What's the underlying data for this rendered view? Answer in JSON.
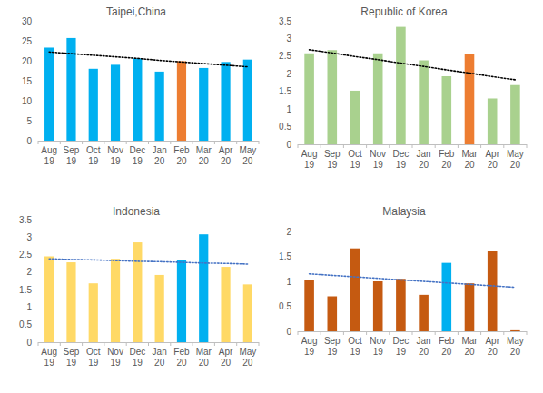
{
  "chart_data": [
    {
      "type": "bar",
      "title": "Taipei,China",
      "categories": [
        "Aug 19",
        "Sep 19",
        "Oct 19",
        "Nov 19",
        "Dec 19",
        "Jan 20",
        "Feb 20",
        "Mar 20",
        "Apr 20",
        "May 20"
      ],
      "series": [
        {
          "values": [
            23.3,
            25.7,
            18.0,
            19.0,
            20.6,
            17.3,
            19.9,
            18.2,
            19.7,
            20.3
          ],
          "colors": [
            "#00b0f0",
            "#00b0f0",
            "#00b0f0",
            "#00b0f0",
            "#00b0f0",
            "#00b0f0",
            "#ed7d31",
            "#00b0f0",
            "#00b0f0",
            "#00b0f0"
          ]
        },
        {
          "type": "line",
          "line_style": "dotted",
          "color": "#000000",
          "values": [
            22.2,
            21.8,
            21.4,
            21.0,
            20.6,
            20.1,
            19.7,
            19.3,
            18.9,
            18.5
          ]
        }
      ],
      "ylim": [
        0,
        30
      ],
      "yticks": [
        0,
        5,
        10,
        15,
        20,
        25,
        30
      ],
      "grid": false
    },
    {
      "type": "bar",
      "title": "Republic of Korea",
      "categories": [
        "Aug 19",
        "Sep 19",
        "Oct 19",
        "Nov 19",
        "Dec 19",
        "Jan 20",
        "Feb 20",
        "Mar 20",
        "Apr 20",
        "May 20"
      ],
      "series": [
        {
          "values": [
            2.58,
            2.67,
            1.52,
            2.58,
            3.33,
            2.38,
            1.93,
            2.55,
            1.3,
            1.68
          ],
          "colors": [
            "#a9d18e",
            "#a9d18e",
            "#a9d18e",
            "#a9d18e",
            "#a9d18e",
            "#a9d18e",
            "#a9d18e",
            "#ed7d31",
            "#a9d18e",
            "#a9d18e"
          ]
        },
        {
          "type": "line",
          "line_style": "dotted",
          "color": "#000000",
          "values": [
            2.68,
            2.59,
            2.49,
            2.4,
            2.3,
            2.21,
            2.11,
            2.02,
            1.92,
            1.83
          ]
        }
      ],
      "ylim": [
        0,
        3.5
      ],
      "yticks": [
        0,
        0.5,
        1,
        1.5,
        2,
        2.5,
        3,
        3.5
      ],
      "grid": false
    },
    {
      "type": "bar",
      "title": "Indonesia",
      "categories": [
        "Aug 19",
        "Sep 19",
        "Oct 19",
        "Nov 19",
        "Dec 19",
        "Jan 20",
        "Feb 20",
        "Mar 20",
        "Apr 20",
        "May 20"
      ],
      "series": [
        {
          "values": [
            2.45,
            2.28,
            1.68,
            2.38,
            2.85,
            1.92,
            2.35,
            3.08,
            2.15,
            1.65
          ],
          "colors": [
            "#ffd966",
            "#ffd966",
            "#ffd966",
            "#ffd966",
            "#ffd966",
            "#ffd966",
            "#00b0f0",
            "#00b0f0",
            "#ffd966",
            "#ffd966"
          ]
        },
        {
          "type": "line",
          "line_style": "dotted",
          "color": "#4472c4",
          "values": [
            2.38,
            2.36,
            2.35,
            2.33,
            2.31,
            2.3,
            2.28,
            2.26,
            2.25,
            2.23
          ]
        }
      ],
      "ylim": [
        0,
        3.5
      ],
      "yticks": [
        0,
        0.5,
        1,
        1.5,
        2,
        2.5,
        3,
        3.5
      ],
      "grid": false
    },
    {
      "type": "bar",
      "title": "Malaysia",
      "categories": [
        "Aug 19",
        "Sep 19",
        "Oct 19",
        "Nov 19",
        "Dec 19",
        "Jan 20",
        "Feb 20",
        "Mar 20",
        "Apr 20",
        "May 20"
      ],
      "series": [
        {
          "values": [
            1.02,
            0.7,
            1.66,
            1.0,
            1.05,
            0.73,
            1.37,
            0.96,
            1.6,
            0.02
          ],
          "colors": [
            "#c55a11",
            "#c55a11",
            "#c55a11",
            "#c55a11",
            "#c55a11",
            "#c55a11",
            "#00b0f0",
            "#c55a11",
            "#c55a11",
            "#c55a11"
          ]
        },
        {
          "type": "line",
          "line_style": "dotted",
          "color": "#4472c4",
          "values": [
            1.15,
            1.12,
            1.09,
            1.06,
            1.03,
            1.0,
            0.97,
            0.94,
            0.91,
            0.88
          ]
        }
      ],
      "ylim": [
        0,
        2
      ],
      "yticks": [
        0,
        0.5,
        1,
        1.5,
        2
      ],
      "grid": false
    }
  ]
}
